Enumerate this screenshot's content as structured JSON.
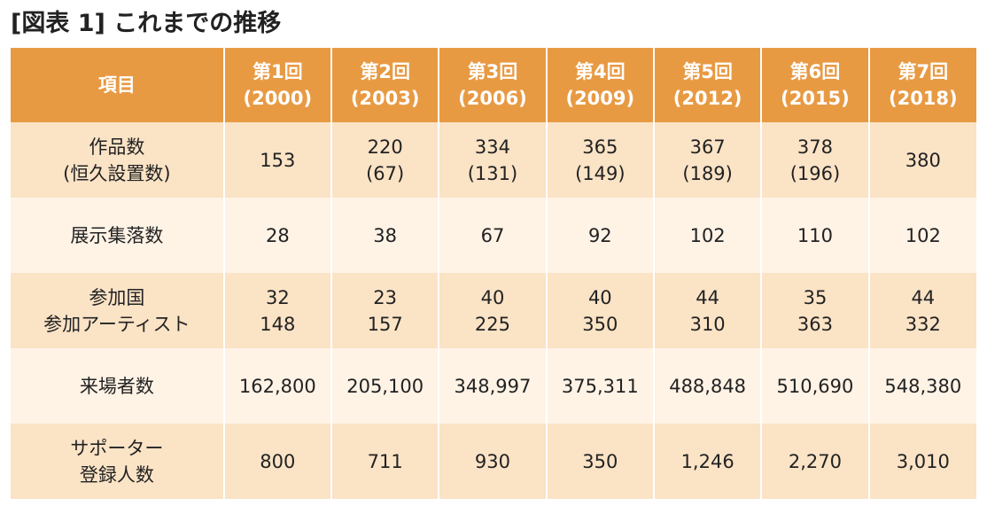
{
  "title": "[図表 1] これまでの推移",
  "header": {
    "item_label": "項目",
    "columns": [
      {
        "name": "第1回",
        "year": "(2000)"
      },
      {
        "name": "第2回",
        "year": "(2003)"
      },
      {
        "name": "第3回",
        "year": "(2006)"
      },
      {
        "name": "第4回",
        "year": "(2009)"
      },
      {
        "name": "第5回",
        "year": "(2012)"
      },
      {
        "name": "第6回",
        "year": "(2015)"
      },
      {
        "name": "第7回",
        "year": "(2018)"
      }
    ]
  },
  "rows": [
    {
      "label": [
        "作品数",
        "(恒久設置数)"
      ],
      "cells": [
        [
          "153"
        ],
        [
          "220",
          "(67)"
        ],
        [
          "334",
          "(131)"
        ],
        [
          "365",
          "(149)"
        ],
        [
          "367",
          "(189)"
        ],
        [
          "378",
          "(196)"
        ],
        [
          "380"
        ]
      ]
    },
    {
      "label": [
        "展示集落数"
      ],
      "cells": [
        [
          "28"
        ],
        [
          "38"
        ],
        [
          "67"
        ],
        [
          "92"
        ],
        [
          "102"
        ],
        [
          "110"
        ],
        [
          "102"
        ]
      ]
    },
    {
      "label": [
        "参加国",
        "参加アーティスト"
      ],
      "cells": [
        [
          "32",
          "148"
        ],
        [
          "23",
          "157"
        ],
        [
          "40",
          "225"
        ],
        [
          "40",
          "350"
        ],
        [
          "44",
          "310"
        ],
        [
          "35",
          "363"
        ],
        [
          "44",
          "332"
        ]
      ]
    },
    {
      "label": [
        "来場者数"
      ],
      "cells": [
        [
          "162,800"
        ],
        [
          "205,100"
        ],
        [
          "348,997"
        ],
        [
          "375,311"
        ],
        [
          "488,848"
        ],
        [
          "510,690"
        ],
        [
          "548,380"
        ]
      ]
    },
    {
      "label": [
        "サポーター",
        "登録人数"
      ],
      "cells": [
        [
          "800"
        ],
        [
          "711"
        ],
        [
          "930"
        ],
        [
          "350"
        ],
        [
          "1,246"
        ],
        [
          "2,270"
        ],
        [
          "3,010"
        ]
      ]
    }
  ],
  "colors": {
    "header_bg": "#e89a43",
    "row_dark": "#fbe3c6",
    "row_light": "#fff3e6",
    "header_text": "#ffffff"
  }
}
